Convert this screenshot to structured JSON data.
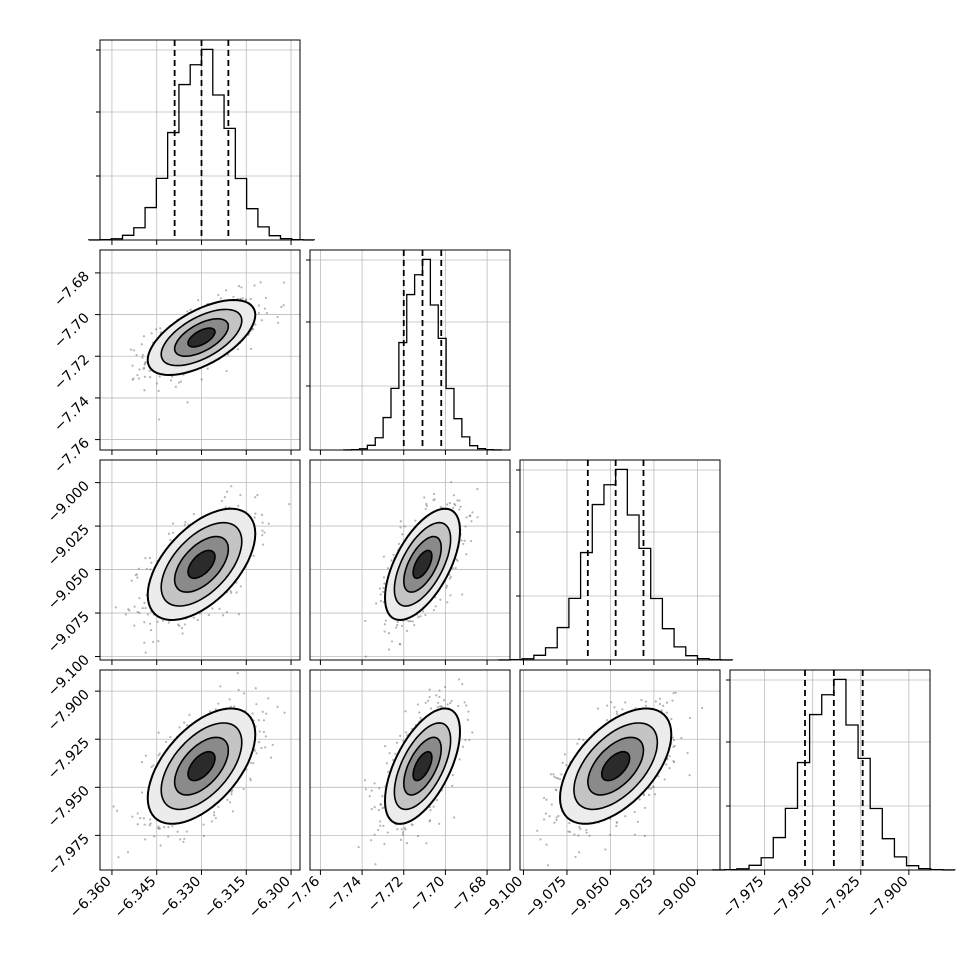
{
  "chart_data": {
    "type": "corner",
    "n_params": 4,
    "params": [
      {
        "name": "",
        "median": -6.33,
        "q16": -6.339,
        "q84": -6.321,
        "sigma": 0.009,
        "xticks": [
          -6.36,
          -6.345,
          -6.33,
          -6.315,
          -6.3
        ],
        "xtick_labels": [
          "−6.360",
          "−6.345",
          "−6.330",
          "−6.315",
          "−6.300"
        ],
        "range": [
          -6.364,
          -6.297
        ]
      },
      {
        "name": "",
        "median": -7.711,
        "q16": -7.72,
        "q84": -7.702,
        "sigma": 0.009,
        "xticks": [
          -7.76,
          -7.74,
          -7.72,
          -7.7,
          -7.68
        ],
        "xtick_labels": [
          "−7.76",
          "−7.74",
          "−7.72",
          "−7.70",
          "−7.68"
        ],
        "range": [
          -7.765,
          -7.669
        ]
      },
      {
        "name": "",
        "median": -9.047,
        "q16": -9.063,
        "q84": -9.031,
        "sigma": 0.016,
        "xticks": [
          -9.1,
          -9.075,
          -9.05,
          -9.025,
          -9.0
        ],
        "xtick_labels": [
          "−9.100",
          "−9.075",
          "−9.050",
          "−9.025",
          "−9.000"
        ],
        "range": [
          -9.102,
          -8.987
        ]
      },
      {
        "name": "",
        "median": -7.939,
        "q16": -7.954,
        "q84": -7.924,
        "sigma": 0.015,
        "xticks": [
          -7.975,
          -7.95,
          -7.925,
          -7.9
        ],
        "xtick_labels": [
          "−7.975",
          "−7.950",
          "−7.925",
          "−7.900"
        ],
        "range": [
          -7.993,
          -7.889
        ]
      }
    ],
    "ylabels": {
      "row1": [
        "−7.68",
        "−7.70",
        "−7.72",
        "−7.74",
        "−7.76"
      ],
      "row2": [
        "−9.000",
        "−9.025",
        "−9.050",
        "−9.075",
        "−9.100"
      ],
      "row3": [
        "−7.900",
        "−7.925",
        "−7.950",
        "−7.975"
      ]
    },
    "correlations": {
      "0-1": 0.6,
      "0-2": 0.55,
      "0-3": 0.55,
      "1-2": 0.6,
      "1-3": 0.6,
      "2-3": 0.55
    },
    "histogram_bins": 20,
    "grid": true,
    "quantile_lines": "dashed"
  }
}
